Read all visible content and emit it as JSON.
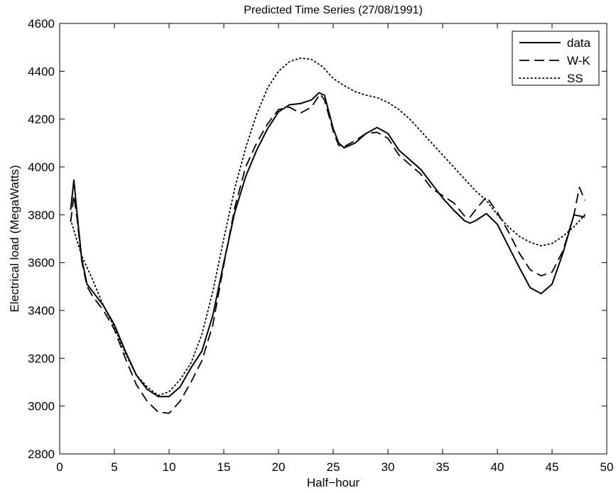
{
  "chart_data": {
    "type": "line",
    "title": "Predicted Time Series (27/08/1991)",
    "xlabel": "Half−hour",
    "ylabel": "Electrical load (MegaWatts)",
    "xlim": [
      0,
      50
    ],
    "ylim": [
      2800,
      4600
    ],
    "xticks": [
      0,
      5,
      10,
      15,
      20,
      25,
      30,
      35,
      40,
      45,
      50
    ],
    "yticks": [
      2800,
      3000,
      3200,
      3400,
      3600,
      3800,
      4000,
      4200,
      4400,
      4600
    ],
    "grid": false,
    "legend_position": "top-right",
    "series": [
      {
        "name": "data",
        "line_style": "solid",
        "color": "#000000",
        "points": [
          [
            1,
            3820
          ],
          [
            1.3,
            3945
          ],
          [
            1.6,
            3800
          ],
          [
            2,
            3620
          ],
          [
            2.5,
            3510
          ],
          [
            3,
            3480
          ],
          [
            4,
            3420
          ],
          [
            5,
            3340
          ],
          [
            6,
            3230
          ],
          [
            7,
            3130
          ],
          [
            8,
            3070
          ],
          [
            9,
            3040
          ],
          [
            10,
            3040
          ],
          [
            11,
            3080
          ],
          [
            12,
            3160
          ],
          [
            13,
            3230
          ],
          [
            14,
            3380
          ],
          [
            15,
            3600
          ],
          [
            16,
            3810
          ],
          [
            17,
            3960
          ],
          [
            18,
            4070
          ],
          [
            19,
            4160
          ],
          [
            20,
            4230
          ],
          [
            21,
            4260
          ],
          [
            22,
            4265
          ],
          [
            23,
            4280
          ],
          [
            23.7,
            4310
          ],
          [
            24.2,
            4300
          ],
          [
            25,
            4160
          ],
          [
            25.5,
            4100
          ],
          [
            26,
            4080
          ],
          [
            27,
            4100
          ],
          [
            28,
            4140
          ],
          [
            29,
            4165
          ],
          [
            30,
            4140
          ],
          [
            31,
            4070
          ],
          [
            32,
            4030
          ],
          [
            33,
            3990
          ],
          [
            34,
            3930
          ],
          [
            35,
            3870
          ],
          [
            36,
            3820
          ],
          [
            37,
            3775
          ],
          [
            37.5,
            3765
          ],
          [
            38,
            3775
          ],
          [
            39,
            3805
          ],
          [
            40,
            3760
          ],
          [
            41,
            3670
          ],
          [
            42,
            3580
          ],
          [
            43,
            3495
          ],
          [
            44,
            3470
          ],
          [
            45,
            3510
          ],
          [
            46,
            3640
          ],
          [
            47,
            3800
          ],
          [
            48,
            3790
          ]
        ]
      },
      {
        "name": "W-K",
        "line_style": "dashed",
        "color": "#000000",
        "points": [
          [
            1,
            3770
          ],
          [
            1.3,
            3880
          ],
          [
            1.6,
            3780
          ],
          [
            2,
            3610
          ],
          [
            2.5,
            3500
          ],
          [
            3,
            3460
          ],
          [
            4,
            3400
          ],
          [
            5,
            3320
          ],
          [
            6,
            3200
          ],
          [
            7,
            3090
          ],
          [
            8,
            3020
          ],
          [
            9,
            2975
          ],
          [
            10,
            2970
          ],
          [
            11,
            3020
          ],
          [
            12,
            3100
          ],
          [
            13,
            3190
          ],
          [
            14,
            3340
          ],
          [
            15,
            3590
          ],
          [
            16,
            3830
          ],
          [
            17,
            4000
          ],
          [
            18,
            4100
          ],
          [
            19,
            4180
          ],
          [
            20,
            4240
          ],
          [
            21,
            4250
          ],
          [
            22,
            4225
          ],
          [
            23,
            4250
          ],
          [
            23.8,
            4305
          ],
          [
            24.2,
            4280
          ],
          [
            25,
            4150
          ],
          [
            25.5,
            4090
          ],
          [
            26,
            4085
          ],
          [
            27,
            4110
          ],
          [
            28,
            4140
          ],
          [
            29,
            4145
          ],
          [
            30,
            4120
          ],
          [
            31,
            4050
          ],
          [
            32,
            4010
          ],
          [
            33,
            3970
          ],
          [
            34,
            3910
          ],
          [
            35,
            3880
          ],
          [
            36,
            3850
          ],
          [
            37,
            3795
          ],
          [
            37.5,
            3790
          ],
          [
            38,
            3820
          ],
          [
            39,
            3875
          ],
          [
            40,
            3810
          ],
          [
            41,
            3730
          ],
          [
            42,
            3640
          ],
          [
            43,
            3570
          ],
          [
            44,
            3545
          ],
          [
            45,
            3560
          ],
          [
            46,
            3650
          ],
          [
            47,
            3800
          ],
          [
            47.5,
            3915
          ],
          [
            48,
            3860
          ]
        ]
      },
      {
        "name": "SS",
        "line_style": "dotted",
        "color": "#000000",
        "points": [
          [
            1,
            3780
          ],
          [
            2,
            3630
          ],
          [
            3,
            3530
          ],
          [
            4,
            3420
          ],
          [
            5,
            3330
          ],
          [
            6,
            3220
          ],
          [
            7,
            3130
          ],
          [
            8,
            3080
          ],
          [
            9,
            3045
          ],
          [
            10,
            3060
          ],
          [
            11,
            3110
          ],
          [
            12,
            3180
          ],
          [
            13,
            3300
          ],
          [
            14,
            3480
          ],
          [
            15,
            3700
          ],
          [
            16,
            3910
          ],
          [
            17,
            4080
          ],
          [
            18,
            4220
          ],
          [
            19,
            4330
          ],
          [
            20,
            4400
          ],
          [
            21,
            4440
          ],
          [
            22,
            4455
          ],
          [
            23,
            4450
          ],
          [
            24,
            4420
          ],
          [
            25,
            4370
          ],
          [
            26,
            4340
          ],
          [
            27,
            4315
          ],
          [
            28,
            4300
          ],
          [
            29,
            4290
          ],
          [
            30,
            4270
          ],
          [
            31,
            4240
          ],
          [
            32,
            4200
          ],
          [
            33,
            4150
          ],
          [
            34,
            4100
          ],
          [
            35,
            4050
          ],
          [
            36,
            4000
          ],
          [
            37,
            3950
          ],
          [
            38,
            3900
          ],
          [
            39,
            3860
          ],
          [
            40,
            3800
          ],
          [
            41,
            3750
          ],
          [
            42,
            3710
          ],
          [
            43,
            3685
          ],
          [
            44,
            3670
          ],
          [
            45,
            3680
          ],
          [
            46,
            3710
          ],
          [
            47,
            3750
          ],
          [
            48,
            3800
          ]
        ]
      }
    ]
  }
}
